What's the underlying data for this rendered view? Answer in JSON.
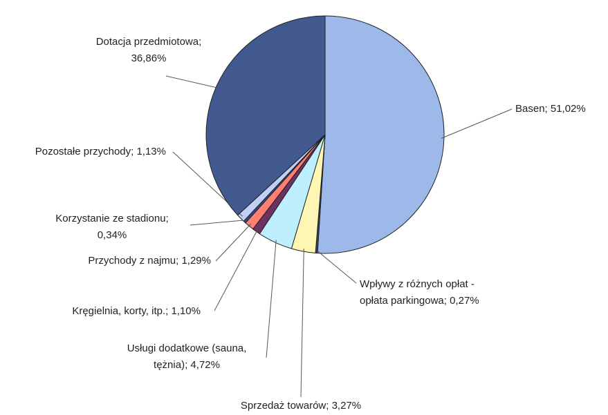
{
  "chart_data": {
    "type": "pie",
    "categories": [
      "Basen",
      "Wpływy z różnych opłat - opłata parkingowa",
      "Sprzedaż towarów",
      "Usługi dodatkowe (sauna, tężnia)",
      "Kręgielnia, korty,  itp.",
      "Przychody z najmu",
      "Korzystanie ze stadionu",
      "Pozostałe przychody",
      "Dotacja przedmiotowa"
    ],
    "values": [
      51.02,
      0.27,
      3.27,
      4.72,
      1.1,
      1.29,
      0.34,
      1.13,
      36.86
    ],
    "value_labels": [
      [
        "Basen; 51,02%"
      ],
      [
        "Wpływy z różnych opłat -",
        "opłata parkingowa; 0,27%"
      ],
      [
        "Sprzedaż towarów; 3,27%"
      ],
      [
        "Usługi dodatkowe (sauna,",
        "tężnia); 4,72%"
      ],
      [
        "Kręgielnia, korty,  itp.; 1,10%"
      ],
      [
        "Przychody z najmu; 1,29%"
      ],
      [
        "Korzystanie ze stadionu;",
        "0,34%"
      ],
      [
        "Pozostałe przychody; 1,13%"
      ],
      [
        "Dotacja przedmiotowa;",
        "36,86%"
      ]
    ],
    "colors": [
      "#9cb9ea",
      "#3b3d66",
      "#fff6b4",
      "#bdefff",
      "#6b3262",
      "#ff7f73",
      "#2e4c8c",
      "#bfcff5",
      "#41598f"
    ]
  }
}
